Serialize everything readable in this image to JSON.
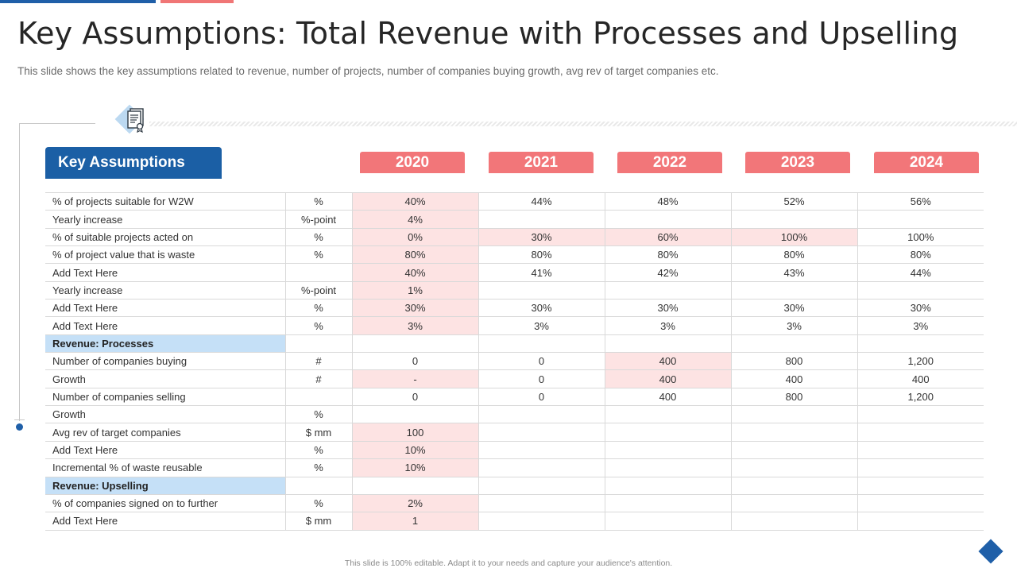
{
  "header": {
    "title": "Key Assumptions: Total Revenue with Processes and Upselling",
    "subtitle": "This slide shows the key assumptions related to revenue, number of projects, number of companies buying growth, avg rev of target companies etc."
  },
  "table": {
    "title": "Key Assumptions",
    "years": [
      "2020",
      "2021",
      "2022",
      "2023",
      "2024"
    ],
    "rows": [
      {
        "label": "% of projects suitable for W2W",
        "unit": "%",
        "values": [
          "40%",
          "44%",
          "48%",
          "52%",
          "56%"
        ],
        "highlight": [
          0
        ]
      },
      {
        "label": "Yearly increase",
        "unit": "%-point",
        "values": [
          "4%",
          "",
          "",
          "",
          ""
        ],
        "highlight": [
          0
        ]
      },
      {
        "label": "% of suitable projects acted on",
        "unit": "%",
        "values": [
          "0%",
          "30%",
          "60%",
          "100%",
          "100%"
        ],
        "highlight": [
          0,
          1,
          2,
          3
        ]
      },
      {
        "label": "% of project value  that is waste",
        "unit": "%",
        "values": [
          "80%",
          "80%",
          "80%",
          "80%",
          "80%"
        ],
        "highlight": [
          0
        ]
      },
      {
        "label": "Add Text Here",
        "unit": "",
        "values": [
          "40%",
          "41%",
          "42%",
          "43%",
          "44%"
        ],
        "highlight": [
          0
        ]
      },
      {
        "label": "Yearly increase",
        "unit": "%-point",
        "values": [
          "1%",
          "",
          "",
          "",
          ""
        ],
        "highlight": [
          0
        ]
      },
      {
        "label": "Add Text Here",
        "unit": "%",
        "values": [
          "30%",
          "30%",
          "30%",
          "30%",
          "30%"
        ],
        "highlight": [
          0
        ]
      },
      {
        "label": "Add Text Here",
        "unit": "%",
        "values": [
          "3%",
          "3%",
          "3%",
          "3%",
          "3%"
        ],
        "highlight": [
          0
        ]
      },
      {
        "label": "Revenue: Processes",
        "section": true
      },
      {
        "label": "Number  of companies buying",
        "unit": "#",
        "values": [
          "0",
          "0",
          "400",
          "800",
          "1,200"
        ],
        "highlight": [
          2
        ]
      },
      {
        "label": "Growth",
        "unit": "#",
        "values": [
          "-",
          "0",
          "400",
          "400",
          "400"
        ],
        "highlight": [
          0,
          2
        ]
      },
      {
        "label": "Number  of companies selling",
        "unit": "",
        "values": [
          "0",
          "0",
          "400",
          "800",
          "1,200"
        ],
        "highlight": []
      },
      {
        "label": "Growth",
        "unit": "%",
        "values": [
          "",
          "",
          "",
          "",
          ""
        ],
        "highlight": []
      },
      {
        "label": "Avg rev  of target companies",
        "unit": "$ mm",
        "values": [
          "100",
          "",
          "",
          "",
          ""
        ],
        "highlight": [
          0
        ]
      },
      {
        "label": "Add Text Here",
        "unit": "%",
        "values": [
          "10%",
          "",
          "",
          "",
          ""
        ],
        "highlight": [
          0
        ]
      },
      {
        "label": "Incremental  % of waste reusable",
        "unit": "%",
        "values": [
          "10%",
          "",
          "",
          "",
          ""
        ],
        "highlight": [
          0
        ]
      },
      {
        "label": "Revenue: Upselling",
        "section": true
      },
      {
        "label": "% of companies signed on to further",
        "unit": "%",
        "values": [
          "2%",
          "",
          "",
          "",
          ""
        ],
        "highlight": [
          0
        ]
      },
      {
        "label": "Add Text Here",
        "unit": "$ mm",
        "values": [
          "1",
          "",
          "",
          "",
          ""
        ],
        "highlight": [
          0
        ]
      }
    ]
  },
  "footer": {
    "text": "This slide is 100% editable. Adapt it to your needs and capture your audience's attention."
  },
  "colors": {
    "brand_blue": "#1f5fa8",
    "year_header": "#f27679",
    "highlight_cell": "#fde3e3",
    "section_cell": "#c5e0f7"
  },
  "icons": [
    "document-icon",
    "diamond-icon"
  ]
}
